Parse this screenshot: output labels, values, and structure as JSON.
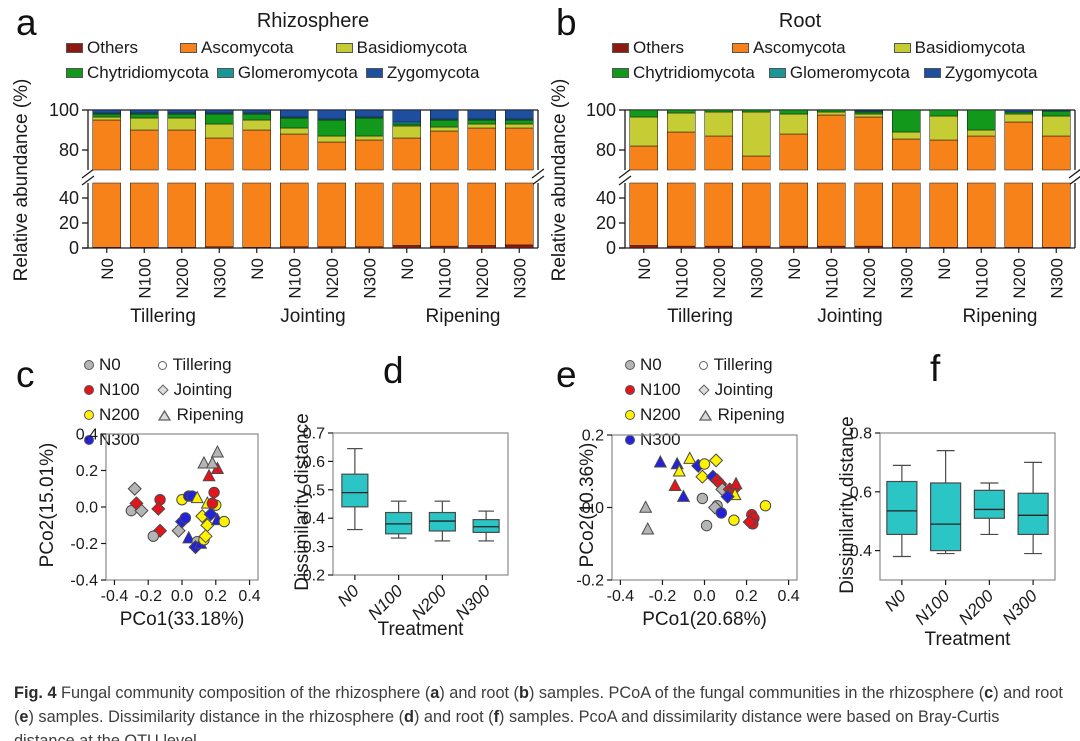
{
  "figure": {
    "caption_segments": [
      {
        "t": "Fig. 4",
        "b": true
      },
      {
        "t": " Fungal community composition of the rhizosphere (",
        "b": false
      },
      {
        "t": "a",
        "b": true
      },
      {
        "t": ") and root (",
        "b": false
      },
      {
        "t": "b",
        "b": true
      },
      {
        "t": ") samples. PCoA of the fungal communities in the rhizosphere (",
        "b": false
      },
      {
        "t": "c",
        "b": true
      },
      {
        "t": ") and root (",
        "b": false
      },
      {
        "t": "e",
        "b": true
      },
      {
        "t": ") samples. Dissimilarity distance in the rhizosphere (",
        "b": false
      },
      {
        "t": "d",
        "b": true
      },
      {
        "t": ") and root (",
        "b": false
      },
      {
        "t": "f",
        "b": true
      },
      {
        "t": ") samples. PcoA and dissimilarity distance were based on Bray-Curtis distance at the OTU level",
        "b": false
      }
    ]
  },
  "colors": {
    "frame": "#8a8a8a",
    "axis": "#1a1a1a",
    "box_fill": "#2bc5c5",
    "box_stroke": "#4a4a4a"
  },
  "taxa_legend": [
    {
      "label": "Others",
      "color": "#8c1a10"
    },
    {
      "label": "Ascomycota",
      "color": "#f8821a"
    },
    {
      "label": "Basidiomycota",
      "color": "#c6cc33"
    },
    {
      "label": "Chytridiomycota",
      "color": "#12991c"
    },
    {
      "label": "Glomeromycota",
      "color": "#1a9696"
    },
    {
      "label": "Zygomycota",
      "color": "#1d4f9e"
    }
  ],
  "pcoa_legend": {
    "treatments": [
      {
        "label": "N0",
        "color": "#b5b5b5"
      },
      {
        "label": "N100",
        "color": "#e3141b"
      },
      {
        "label": "N200",
        "color": "#fff200"
      },
      {
        "label": "N300",
        "color": "#2222dd"
      }
    ],
    "stages": [
      {
        "label": "Tillering",
        "shape": "circle"
      },
      {
        "label": "Jointing",
        "shape": "diamond"
      },
      {
        "label": "Ripening",
        "shape": "triangle"
      }
    ]
  },
  "panels": {
    "a": {
      "letter": "a",
      "title": "Rhizosphere"
    },
    "b": {
      "letter": "b",
      "title": "Root"
    },
    "c": {
      "letter": "c"
    },
    "d": {
      "letter": "d"
    },
    "e": {
      "letter": "e"
    },
    "f": {
      "letter": "f"
    }
  },
  "chart_data": [
    {
      "id": "a",
      "type": "bar",
      "stacked": true,
      "broken_axis": true,
      "title": "Rhizosphere",
      "ylabel": "Relative abundance (%)",
      "categories": [
        "N0",
        "N100",
        "N200",
        "N300",
        "N0",
        "N100",
        "N200",
        "N300",
        "N0",
        "N100",
        "N200",
        "N300"
      ],
      "group_labels": [
        "Tillering",
        "Jointing",
        "Ripening"
      ],
      "yticks_upper": [
        100,
        80
      ],
      "yticks_lower": [
        40,
        20,
        0
      ],
      "upper_range": [
        70,
        100
      ],
      "lower_range": [
        0,
        52
      ],
      "series": [
        {
          "name": "Others",
          "color": "#8c1a10",
          "values": [
            0.5,
            0.5,
            0.5,
            1,
            0.5,
            1,
            1,
            1,
            2,
            1.5,
            2,
            2.5
          ]
        },
        {
          "name": "Ascomycota",
          "color": "#f8821a",
          "values": [
            94.5,
            89.5,
            89.5,
            85,
            89.5,
            87,
            83,
            84,
            84,
            88,
            89,
            88.5
          ]
        },
        {
          "name": "Basidiomycota",
          "color": "#c6cc33",
          "values": [
            1.5,
            6,
            6,
            7,
            5,
            3,
            3,
            2,
            6,
            2,
            2,
            2
          ]
        },
        {
          "name": "Chytridiomycota",
          "color": "#12991c",
          "values": [
            1.5,
            2,
            2,
            5,
            3,
            5,
            8,
            9,
            1,
            3.5,
            2,
            2
          ]
        },
        {
          "name": "Glomeromycota",
          "color": "#1a9696",
          "values": [
            0.5,
            0.5,
            0.5,
            0.5,
            0.5,
            0.5,
            0.5,
            0.5,
            1,
            0.5,
            0.5,
            0.5
          ]
        },
        {
          "name": "Zygomycota",
          "color": "#1d4f9e",
          "values": [
            1.5,
            1.5,
            1.5,
            1.5,
            1.5,
            3.5,
            4.5,
            3.5,
            6,
            4.5,
            4.5,
            4.5
          ]
        }
      ]
    },
    {
      "id": "b",
      "type": "bar",
      "stacked": true,
      "broken_axis": true,
      "title": "Root",
      "ylabel": "Relative abundance (%)",
      "categories": [
        "N0",
        "N100",
        "N200",
        "N300",
        "N0",
        "N100",
        "N200",
        "N300",
        "N0",
        "N100",
        "N200",
        "N300"
      ],
      "group_labels": [
        "Tillering",
        "Jointing",
        "Ripening"
      ],
      "yticks_upper": [
        100,
        80
      ],
      "yticks_lower": [
        40,
        20,
        0
      ],
      "upper_range": [
        70,
        100
      ],
      "lower_range": [
        0,
        52
      ],
      "series": [
        {
          "name": "Others",
          "color": "#8c1a10",
          "values": [
            2,
            1.5,
            1.5,
            1.5,
            1.5,
            1.5,
            1.5,
            0.5,
            0.5,
            0.5,
            0.5,
            0.5
          ]
        },
        {
          "name": "Ascomycota",
          "color": "#f8821a",
          "values": [
            80,
            87.5,
            85.5,
            75.5,
            86.5,
            96,
            95,
            85,
            84.5,
            86.5,
            93.5,
            86.5
          ]
        },
        {
          "name": "Basidiomycota",
          "color": "#c6cc33",
          "values": [
            14.5,
            9.5,
            12,
            22,
            10,
            1.5,
            1.5,
            3.5,
            12,
            3,
            4,
            10
          ]
        },
        {
          "name": "Chytridiomycota",
          "color": "#12991c",
          "values": [
            3.5,
            1.5,
            1,
            1,
            2,
            1,
            1,
            11,
            3,
            10,
            1,
            2.5
          ]
        },
        {
          "name": "Glomeromycota",
          "color": "#1a9696",
          "values": [
            0,
            0,
            0,
            0,
            0,
            0,
            0.5,
            0,
            0,
            0,
            0,
            0
          ]
        },
        {
          "name": "Zygomycota",
          "color": "#1d4f9e",
          "values": [
            0,
            0,
            0,
            0,
            0,
            0,
            0.5,
            0,
            0,
            0,
            1,
            0.5
          ]
        }
      ]
    },
    {
      "id": "c",
      "type": "scatter",
      "xlabel": "PCo1(33.18%)",
      "ylabel": "PCo2(15.01%)",
      "xlim": [
        -0.45,
        0.45
      ],
      "ylim": [
        -0.4,
        0.4
      ],
      "xticks": [
        -0.4,
        -0.2,
        0,
        0.2,
        0.4
      ],
      "yticks": [
        0.4,
        0.2,
        0,
        -0.2,
        -0.4
      ],
      "point_key": "[x, y, treatment_index, stage_index]",
      "points": [
        [
          -0.28,
          0.1,
          0,
          1
        ],
        [
          -0.3,
          -0.02,
          0,
          0
        ],
        [
          -0.24,
          -0.02,
          0,
          1
        ],
        [
          -0.27,
          0.02,
          1,
          1
        ],
        [
          -0.13,
          0.04,
          1,
          0
        ],
        [
          -0.14,
          -0.01,
          1,
          1
        ],
        [
          -0.13,
          -0.13,
          1,
          1
        ],
        [
          -0.17,
          -0.16,
          0,
          0
        ],
        [
          0.0,
          0.04,
          2,
          0
        ],
        [
          0.04,
          0.06,
          3,
          0
        ],
        [
          0.06,
          0.06,
          3,
          0
        ],
        [
          0.09,
          0.05,
          2,
          2
        ],
        [
          -0.02,
          -0.13,
          0,
          1
        ],
        [
          0.0,
          -0.08,
          3,
          1
        ],
        [
          0.02,
          -0.06,
          3,
          0
        ],
        [
          0.04,
          -0.17,
          3,
          2
        ],
        [
          0.09,
          -0.19,
          0,
          0
        ],
        [
          0.08,
          -0.22,
          3,
          1
        ],
        [
          0.11,
          -0.2,
          3,
          2
        ],
        [
          0.13,
          -0.18,
          2,
          0
        ],
        [
          0.12,
          -0.05,
          2,
          1
        ],
        [
          0.15,
          -0.1,
          2,
          1
        ],
        [
          0.14,
          -0.16,
          2,
          1
        ],
        [
          0.17,
          -0.04,
          3,
          1
        ],
        [
          0.21,
          -0.07,
          3,
          2
        ],
        [
          0.25,
          -0.08,
          2,
          0
        ],
        [
          0.2,
          0.01,
          2,
          0
        ],
        [
          0.15,
          0.02,
          2,
          2
        ],
        [
          0.19,
          0.08,
          1,
          0
        ],
        [
          0.18,
          0.02,
          1,
          0
        ],
        [
          0.16,
          0.17,
          1,
          2
        ],
        [
          0.21,
          0.21,
          1,
          2
        ],
        [
          0.13,
          0.24,
          0,
          2
        ],
        [
          0.18,
          0.24,
          0,
          2
        ],
        [
          0.21,
          0.3,
          0,
          2
        ]
      ]
    },
    {
      "id": "d",
      "type": "box",
      "xlabel": "Treatment",
      "ylabel": "Dissimilarity distance",
      "categories": [
        "N0",
        "N100",
        "N200",
        "N300"
      ],
      "ylim": [
        0.2,
        0.7
      ],
      "yticks": [
        0.7,
        0.6,
        0.5,
        0.4,
        0.3,
        0.2
      ],
      "boxes": [
        {
          "low": 0.36,
          "q1": 0.44,
          "median": 0.49,
          "q3": 0.555,
          "high": 0.645
        },
        {
          "low": 0.33,
          "q1": 0.345,
          "median": 0.38,
          "q3": 0.42,
          "high": 0.46
        },
        {
          "low": 0.32,
          "q1": 0.355,
          "median": 0.39,
          "q3": 0.42,
          "high": 0.46
        },
        {
          "low": 0.32,
          "q1": 0.35,
          "median": 0.37,
          "q3": 0.395,
          "high": 0.425
        }
      ]
    },
    {
      "id": "e",
      "type": "scatter",
      "xlabel": "PCo1(20.68%)",
      "ylabel": "PCo2(10.36%)",
      "xlim": [
        -0.44,
        0.44
      ],
      "ylim": [
        -0.2,
        0.2
      ],
      "xticks": [
        -0.4,
        -0.2,
        0,
        0.2,
        0.4
      ],
      "yticks": [
        0.2,
        0,
        -0.2
      ],
      "point_key": "[x, y, treatment_index, stage_index]",
      "points": [
        [
          -0.21,
          0.125,
          3,
          2
        ],
        [
          -0.13,
          0.12,
          3,
          2
        ],
        [
          -0.12,
          0.1,
          2,
          2
        ],
        [
          -0.07,
          0.135,
          2,
          2
        ],
        [
          -0.03,
          0.115,
          3,
          1
        ],
        [
          0.0,
          0.12,
          2,
          0
        ],
        [
          0.055,
          0.13,
          2,
          1
        ],
        [
          -0.01,
          0.085,
          2,
          1
        ],
        [
          -0.14,
          0.06,
          1,
          2
        ],
        [
          -0.1,
          0.03,
          3,
          2
        ],
        [
          -0.28,
          0.0,
          0,
          2
        ],
        [
          -0.27,
          -0.06,
          0,
          2
        ],
        [
          -0.01,
          0.025,
          0,
          0
        ],
        [
          0.04,
          0.085,
          3,
          1
        ],
        [
          0.06,
          0.075,
          1,
          1
        ],
        [
          0.075,
          0.065,
          1,
          1
        ],
        [
          0.085,
          0.05,
          0,
          1
        ],
        [
          0.12,
          0.05,
          1,
          1
        ],
        [
          0.14,
          0.05,
          1,
          1
        ],
        [
          0.15,
          0.065,
          1,
          2
        ],
        [
          0.145,
          0.035,
          2,
          2
        ],
        [
          0.11,
          0.03,
          3,
          1
        ],
        [
          0.06,
          0.005,
          0,
          0
        ],
        [
          0.05,
          0.0,
          0,
          1
        ],
        [
          0.08,
          -0.015,
          3,
          0
        ],
        [
          0.14,
          -0.035,
          2,
          0
        ],
        [
          0.01,
          -0.05,
          0,
          0
        ],
        [
          0.225,
          -0.02,
          1,
          0
        ],
        [
          0.235,
          -0.03,
          1,
          0
        ],
        [
          0.23,
          -0.045,
          1,
          0
        ],
        [
          0.215,
          -0.04,
          1,
          1
        ],
        [
          0.29,
          0.005,
          2,
          0
        ]
      ]
    },
    {
      "id": "f",
      "type": "box",
      "xlabel": "Treatment",
      "ylabel": "Dissimilarity distance",
      "categories": [
        "N0",
        "N100",
        "N200",
        "N300"
      ],
      "ylim": [
        0.3,
        0.8
      ],
      "yticks": [
        0.8,
        0.6,
        0.4
      ],
      "boxes": [
        {
          "low": 0.38,
          "q1": 0.455,
          "median": 0.535,
          "q3": 0.635,
          "high": 0.69
        },
        {
          "low": 0.39,
          "q1": 0.4,
          "median": 0.49,
          "q3": 0.63,
          "high": 0.74
        },
        {
          "low": 0.455,
          "q1": 0.51,
          "median": 0.54,
          "q3": 0.605,
          "high": 0.63
        },
        {
          "low": 0.39,
          "q1": 0.455,
          "median": 0.52,
          "q3": 0.595,
          "high": 0.7
        }
      ]
    }
  ]
}
